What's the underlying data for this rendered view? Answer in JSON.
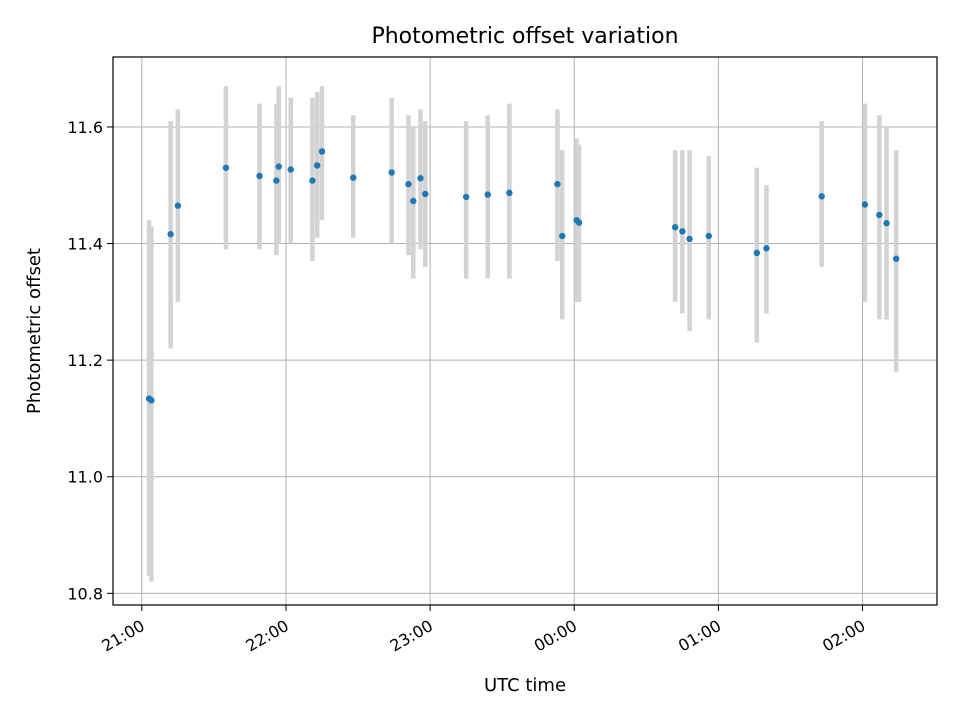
{
  "chart_data": {
    "type": "scatter",
    "title": "Photometric offset variation",
    "xlabel": "UTC time",
    "ylabel": "Photometric offset",
    "xlim": [
      "20:48",
      "02:31"
    ],
    "ylim": [
      10.78,
      11.72
    ],
    "x_ticks": [
      "21:00",
      "22:00",
      "23:00",
      "00:00",
      "01:00",
      "02:00"
    ],
    "y_ticks": [
      10.8,
      11.0,
      11.2,
      11.4,
      11.6
    ],
    "grid": true,
    "colors": {
      "point": "#1f77b4",
      "errorbar": "#d3d3d3",
      "grid": "#b0b0b0"
    },
    "points": [
      {
        "x": "21:03",
        "y": 11.134,
        "lo": 10.83,
        "hi": 11.44
      },
      {
        "x": "21:04",
        "y": 11.131,
        "lo": 10.82,
        "hi": 11.43
      },
      {
        "x": "21:12",
        "y": 11.416,
        "lo": 11.22,
        "hi": 11.61
      },
      {
        "x": "21:15",
        "y": 11.465,
        "lo": 11.3,
        "hi": 11.63
      },
      {
        "x": "21:35",
        "y": 11.53,
        "lo": 11.39,
        "hi": 11.67
      },
      {
        "x": "21:49",
        "y": 11.516,
        "lo": 11.39,
        "hi": 11.64
      },
      {
        "x": "21:56",
        "y": 11.508,
        "lo": 11.38,
        "hi": 11.64
      },
      {
        "x": "21:57",
        "y": 11.532,
        "lo": 11.4,
        "hi": 11.67
      },
      {
        "x": "22:02",
        "y": 11.527,
        "lo": 11.4,
        "hi": 11.65
      },
      {
        "x": "22:11",
        "y": 11.508,
        "lo": 11.37,
        "hi": 11.65
      },
      {
        "x": "22:13",
        "y": 11.534,
        "lo": 11.41,
        "hi": 11.66
      },
      {
        "x": "22:15",
        "y": 11.558,
        "lo": 11.44,
        "hi": 11.67
      },
      {
        "x": "22:28",
        "y": 11.513,
        "lo": 11.41,
        "hi": 11.62
      },
      {
        "x": "22:44",
        "y": 11.522,
        "lo": 11.4,
        "hi": 11.65
      },
      {
        "x": "22:51",
        "y": 11.502,
        "lo": 11.38,
        "hi": 11.62
      },
      {
        "x": "22:53",
        "y": 11.473,
        "lo": 11.34,
        "hi": 11.6
      },
      {
        "x": "22:56",
        "y": 11.512,
        "lo": 11.39,
        "hi": 11.63
      },
      {
        "x": "22:58",
        "y": 11.485,
        "lo": 11.36,
        "hi": 11.61
      },
      {
        "x": "23:15",
        "y": 11.48,
        "lo": 11.34,
        "hi": 11.61
      },
      {
        "x": "23:24",
        "y": 11.484,
        "lo": 11.34,
        "hi": 11.62
      },
      {
        "x": "23:33",
        "y": 11.487,
        "lo": 11.34,
        "hi": 11.64
      },
      {
        "x": "23:53",
        "y": 11.502,
        "lo": 11.37,
        "hi": 11.63
      },
      {
        "x": "23:55",
        "y": 11.413,
        "lo": 11.27,
        "hi": 11.56
      },
      {
        "x": "00:01",
        "y": 11.44,
        "lo": 11.3,
        "hi": 11.58
      },
      {
        "x": "00:02",
        "y": 11.436,
        "lo": 11.3,
        "hi": 11.57
      },
      {
        "x": "00:42",
        "y": 11.428,
        "lo": 11.3,
        "hi": 11.56
      },
      {
        "x": "00:45",
        "y": 11.421,
        "lo": 11.28,
        "hi": 11.56
      },
      {
        "x": "00:48",
        "y": 11.408,
        "lo": 11.25,
        "hi": 11.56
      },
      {
        "x": "00:56",
        "y": 11.413,
        "lo": 11.27,
        "hi": 11.55
      },
      {
        "x": "01:16",
        "y": 11.384,
        "lo": 11.23,
        "hi": 11.53
      },
      {
        "x": "01:20",
        "y": 11.392,
        "lo": 11.28,
        "hi": 11.5
      },
      {
        "x": "01:43",
        "y": 11.481,
        "lo": 11.36,
        "hi": 11.61
      },
      {
        "x": "02:01",
        "y": 11.467,
        "lo": 11.3,
        "hi": 11.64
      },
      {
        "x": "02:07",
        "y": 11.449,
        "lo": 11.27,
        "hi": 11.62
      },
      {
        "x": "02:10",
        "y": 11.435,
        "lo": 11.27,
        "hi": 11.6
      },
      {
        "x": "02:14",
        "y": 11.374,
        "lo": 11.18,
        "hi": 11.56
      }
    ]
  }
}
